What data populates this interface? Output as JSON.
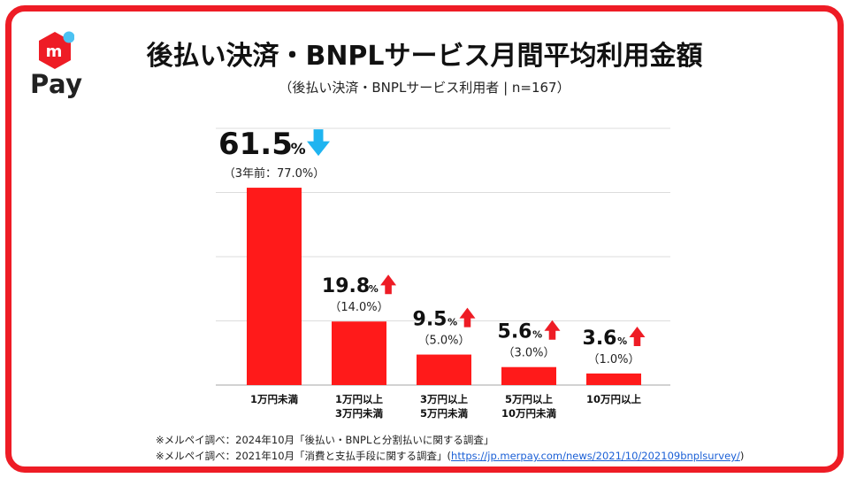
{
  "header": {
    "logo_text": "Pay",
    "title": "後払い決済・BNPLサービス月間平均利用金額",
    "subtitle": "（後払い決済・BNPLサービス利用者 | n=167）"
  },
  "colors": {
    "frame": "#ee1c25",
    "bar": "#ff1a1a",
    "arrow_up": "#ee1c25",
    "arrow_down": "#1fb4f0",
    "logo_dot": "#4cc2f2"
  },
  "chart_data": {
    "type": "bar",
    "title": "後払い決済・BNPLサービス月間平均利用金額",
    "xlabel": "",
    "ylabel": "",
    "ylim": [
      0,
      80
    ],
    "grid": true,
    "categories": [
      [
        "1万円未満"
      ],
      [
        "1万円以上",
        "3万円未満"
      ],
      [
        "3万円以上",
        "5万円未満"
      ],
      [
        "5万円以上",
        "10万円未満"
      ],
      [
        "10万円以上"
      ]
    ],
    "values": [
      61.5,
      19.8,
      9.5,
      5.6,
      3.6
    ],
    "value_labels": [
      "61.5",
      "19.8",
      "9.5",
      "5.6",
      "3.6"
    ],
    "unit": "%",
    "previous_labels": [
      "（3年前：77.0%）",
      "（14.0%）",
      "（5.0%）",
      "（3.0%）",
      "（1.0%）"
    ],
    "previous_values": [
      77.0,
      14.0,
      5.0,
      3.0,
      1.0
    ],
    "trend": [
      "down",
      "up",
      "up",
      "up",
      "up"
    ]
  },
  "footnotes": {
    "line1": "※メルペイ調べ：2024年10月「後払い・BNPLと分割払いに関する調査」",
    "line2_prefix": "※メルペイ調べ：2021年10月「消費と支払手段に関する調査」(",
    "line2_link": "https://jp.merpay.com/news/2021/10/202109bnplsurvey/",
    "line2_suffix": ")"
  }
}
